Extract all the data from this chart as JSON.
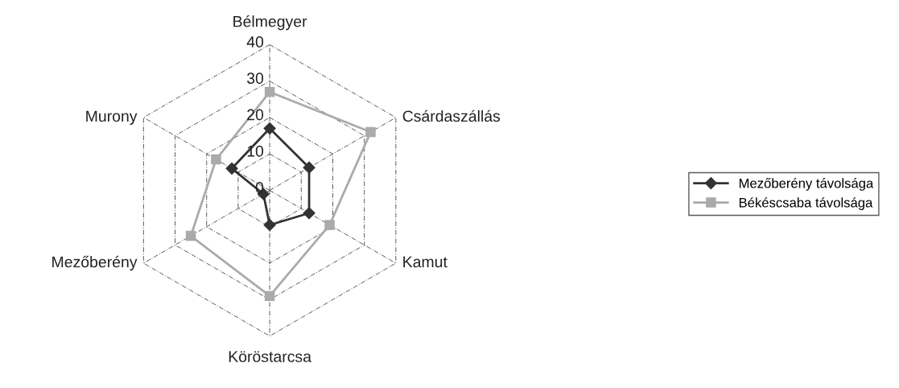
{
  "chart_data": {
    "type": "radar",
    "categories": [
      "Bélmegyer",
      "Csárdaszállás",
      "Kamut",
      "Köröstarcsa",
      "Mezőberény",
      "Murony"
    ],
    "series": [
      {
        "name": "Mezőberény távolsága",
        "color": "#333333",
        "marker": "diamond",
        "values": [
          17,
          12.5,
          12.5,
          9.5,
          2,
          12
        ]
      },
      {
        "name": "Békéscsaba távolsága",
        "color": "#aaaaaa",
        "marker": "square",
        "values": [
          27,
          32,
          19,
          29,
          25,
          17
        ]
      }
    ],
    "ylim": [
      0,
      40
    ],
    "yticks": [
      0,
      10,
      20,
      30,
      40
    ],
    "grid": true,
    "legend": "right",
    "line_style": "solid"
  }
}
